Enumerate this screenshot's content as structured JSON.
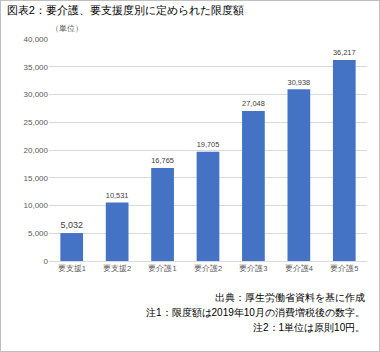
{
  "chart_data": {
    "type": "bar",
    "title": "図表2：要介護、要支援度別に定められた限度額",
    "categories": [
      "要支援1",
      "要支援2",
      "要介護1",
      "要介護2",
      "要介護3",
      "要介護4",
      "要介護5"
    ],
    "values": [
      5032,
      10531,
      16765,
      19705,
      27048,
      30938,
      36217
    ],
    "value_labels": [
      "5,032",
      "10,531",
      "16,765",
      "19,705",
      "27,048",
      "30,938",
      "36,217"
    ],
    "data_labels": true,
    "color": "#4472c4",
    "ylim": [
      0,
      40000
    ],
    "yticks": [
      0,
      {
        "value": 5000,
        "label": "5,000"
      },
      {
        "value": 10000,
        "label": "10,000"
      },
      {
        "value": 15000,
        "label": "15,000"
      },
      {
        "value": 20000,
        "label": "20,000"
      },
      {
        "value": 25000,
        "label": "25,000"
      },
      {
        "value": 30000,
        "label": "30,000"
      },
      {
        "value": 35000,
        "label": "35,000"
      },
      {
        "value": 40000,
        "label": "40,000"
      }
    ],
    "grid": true,
    "annotations": [
      "（単位）",
      "出典：厚生労働省資料を基に作成",
      "注1：限度額は2019年10月の消費増税後の数字。",
      "注2：1単位は原則10円。"
    ]
  }
}
